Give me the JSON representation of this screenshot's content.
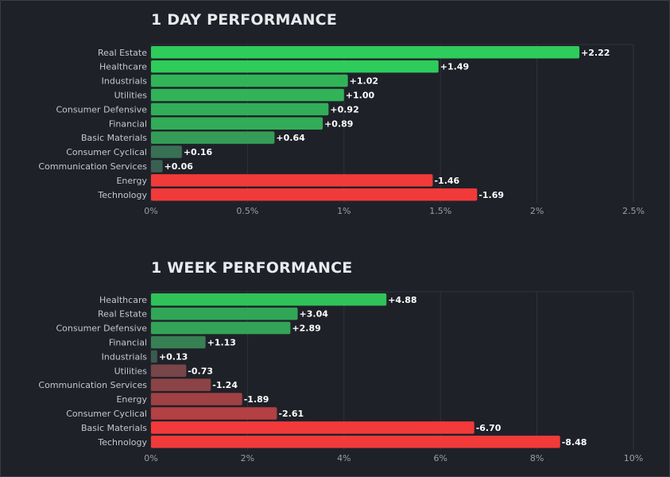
{
  "chart_data": [
    {
      "type": "bar",
      "orientation": "horizontal",
      "title": "1 DAY PERFORMANCE",
      "categories": [
        "Real Estate",
        "Healthcare",
        "Industrials",
        "Utilities",
        "Consumer Defensive",
        "Financial",
        "Basic Materials",
        "Consumer Cyclical",
        "Communication Services",
        "Energy",
        "Technology"
      ],
      "values": [
        2.22,
        1.49,
        1.02,
        1.0,
        0.92,
        0.89,
        0.64,
        0.16,
        0.06,
        -1.46,
        -1.69
      ],
      "value_labels": [
        "+2.22",
        "+1.49",
        "+1.02",
        "+1.00",
        "+0.92",
        "+0.89",
        "+0.64",
        "+0.16",
        "+0.06",
        "-1.46",
        "-1.69"
      ],
      "bar_length": "absolute value",
      "xlim": [
        0,
        2.5
      ],
      "xticks": [
        "0%",
        "0.5%",
        "1%",
        "1.5%",
        "2%",
        "2.5%"
      ],
      "grid": true,
      "colors": {
        "positive": "#2ecc5a",
        "negative": "#f23a3a",
        "neutral": "#3d4a50"
      }
    },
    {
      "type": "bar",
      "orientation": "horizontal",
      "title": "1 WEEK PERFORMANCE",
      "categories": [
        "Healthcare",
        "Real Estate",
        "Consumer Defensive",
        "Financial",
        "Industrials",
        "Utilities",
        "Communication Services",
        "Energy",
        "Consumer Cyclical",
        "Basic Materials",
        "Technology"
      ],
      "values": [
        4.88,
        3.04,
        2.89,
        1.13,
        0.13,
        -0.73,
        -1.24,
        -1.89,
        -2.61,
        -6.7,
        -8.48
      ],
      "value_labels": [
        "+4.88",
        "+3.04",
        "+2.89",
        "+1.13",
        "+0.13",
        "-0.73",
        "-1.24",
        "-1.89",
        "-2.61",
        "-6.70",
        "-8.48"
      ],
      "bar_length": "absolute value",
      "xlim": [
        0,
        10
      ],
      "xticks": [
        "0%",
        "2%",
        "4%",
        "6%",
        "8%",
        "10%"
      ],
      "grid": true,
      "colors": {
        "positive": "#2ecc5a",
        "negative": "#f23a3a",
        "neutral": "#3d4a50"
      }
    }
  ]
}
